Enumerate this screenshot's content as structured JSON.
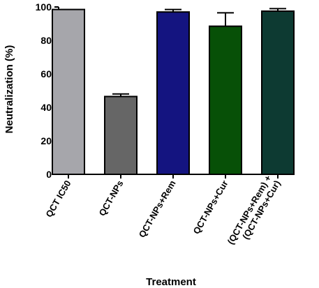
{
  "chart_data": {
    "type": "bar",
    "title": "",
    "xlabel": "Treatment",
    "ylabel": "Neutralization (%)",
    "ylim": [
      0,
      100
    ],
    "yticks": [
      0,
      20,
      40,
      60,
      80,
      100
    ],
    "grid": false,
    "categories": [
      "QCT IC50",
      "QCT-NPs",
      "QCT-NPs+Rem",
      "QCT-NPs+Cur",
      "(QCT-NPs+Rem) +\n(QCT-NPs+Cur)"
    ],
    "values": [
      98.5,
      46.5,
      97,
      88.5,
      97.5
    ],
    "errors": [
      0,
      1.5,
      1.5,
      8,
      1.5
    ],
    "colors": [
      "#a6a6ab",
      "#666666",
      "#141480",
      "#075007",
      "#0d3a32"
    ]
  }
}
